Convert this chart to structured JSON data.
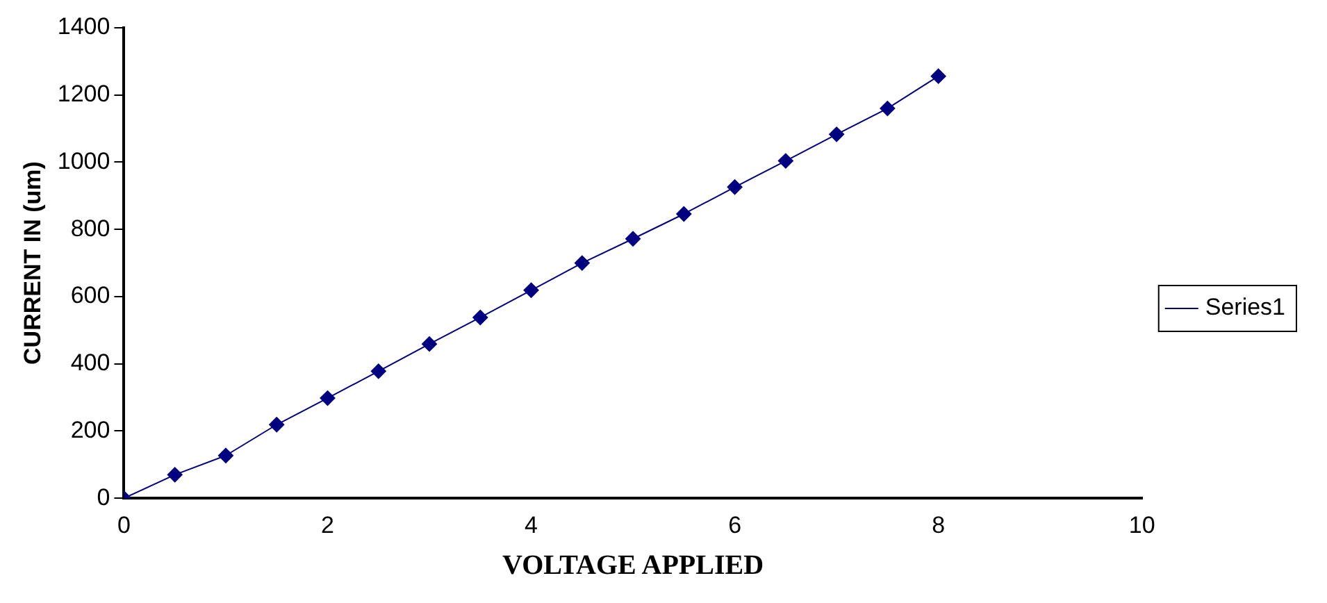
{
  "chart_data": {
    "type": "line",
    "xlabel": "VOLTAGE APPLIED",
    "ylabel": "CURRENT IN (um)",
    "x": [
      0,
      0.5,
      1,
      1.5,
      2,
      2.5,
      3,
      3.5,
      4,
      4.5,
      5,
      5.5,
      6,
      6.5,
      7,
      7.5,
      8
    ],
    "series": [
      {
        "name": "Series1",
        "color": "#000080",
        "values": [
          0,
          70,
          127,
          219,
          298,
          378,
          459,
          538,
          619,
          700,
          772,
          846,
          926,
          1004,
          1083,
          1160,
          1256
        ]
      }
    ],
    "xlim": [
      0,
      10
    ],
    "xticks": [
      0,
      2,
      4,
      6,
      8,
      10
    ],
    "ylim": [
      0,
      1400
    ],
    "yticks": [
      0,
      200,
      400,
      600,
      800,
      1000,
      1200,
      1400
    ],
    "grid": false,
    "legend": "right",
    "marker": "diamond",
    "line_style": "solid"
  }
}
